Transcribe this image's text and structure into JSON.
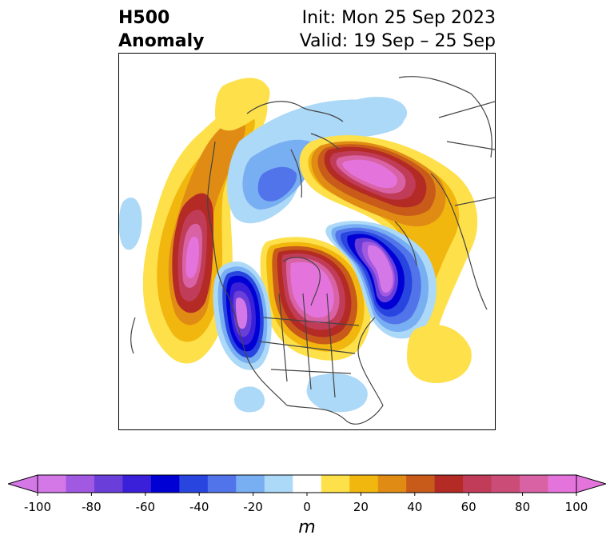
{
  "header": {
    "title_line1": "H500",
    "title_line2": "Anomaly",
    "init_text": "Init: Mon 25 Sep 2023",
    "valid_text": "Valid: 19 Sep – 25 Sep"
  },
  "map": {
    "projection": "north-polar-stereographic",
    "region": "North America / Arctic / North Atlantic",
    "anomalies": [
      {
        "feature": "ridge",
        "location": "NE Pacific / off west coast of Canada",
        "peak": 100
      },
      {
        "feature": "ridge",
        "location": "central Canada / Hudson Bay",
        "peak": 100
      },
      {
        "feature": "ridge",
        "location": "northern Eurasia / Siberia",
        "peak": 100
      },
      {
        "feature": "ridge",
        "location": "Alaska / Bering Strait",
        "peak": 20
      },
      {
        "feature": "trough",
        "location": "western US / Pacific NW coast",
        "peak": -100
      },
      {
        "feature": "trough",
        "location": "Greenland / Labrador Sea / North Atlantic",
        "peak": -100
      },
      {
        "feature": "trough",
        "location": "Arctic Ocean / Beaufort Sea",
        "peak": -50
      },
      {
        "feature": "weak negative",
        "location": "southeastern US",
        "peak": -20
      }
    ]
  },
  "colorbar": {
    "unit": "m",
    "ticks": [
      "-100",
      "-80",
      "-60",
      "-40",
      "-20",
      "0",
      "20",
      "40",
      "60",
      "80",
      "100"
    ],
    "levels": [
      -100,
      -90,
      -80,
      -70,
      -60,
      -50,
      -40,
      -30,
      -20,
      -10,
      10,
      20,
      30,
      40,
      50,
      60,
      70,
      80,
      90,
      100
    ],
    "colors": [
      "#d478e8",
      "#a159e2",
      "#6a3ed9",
      "#3a20d8",
      "#0000d4",
      "#2945e0",
      "#5274ea",
      "#78aef2",
      "#acd9f7",
      "#ffffff",
      "#fde04a",
      "#f2b70e",
      "#e08c14",
      "#c85a1a",
      "#b42a24",
      "#c13c58",
      "#cc4c78",
      "#d862a4",
      "#e474dc"
    ],
    "extend_low_color": "#d478e8",
    "extend_high_color": "#e474dc"
  }
}
